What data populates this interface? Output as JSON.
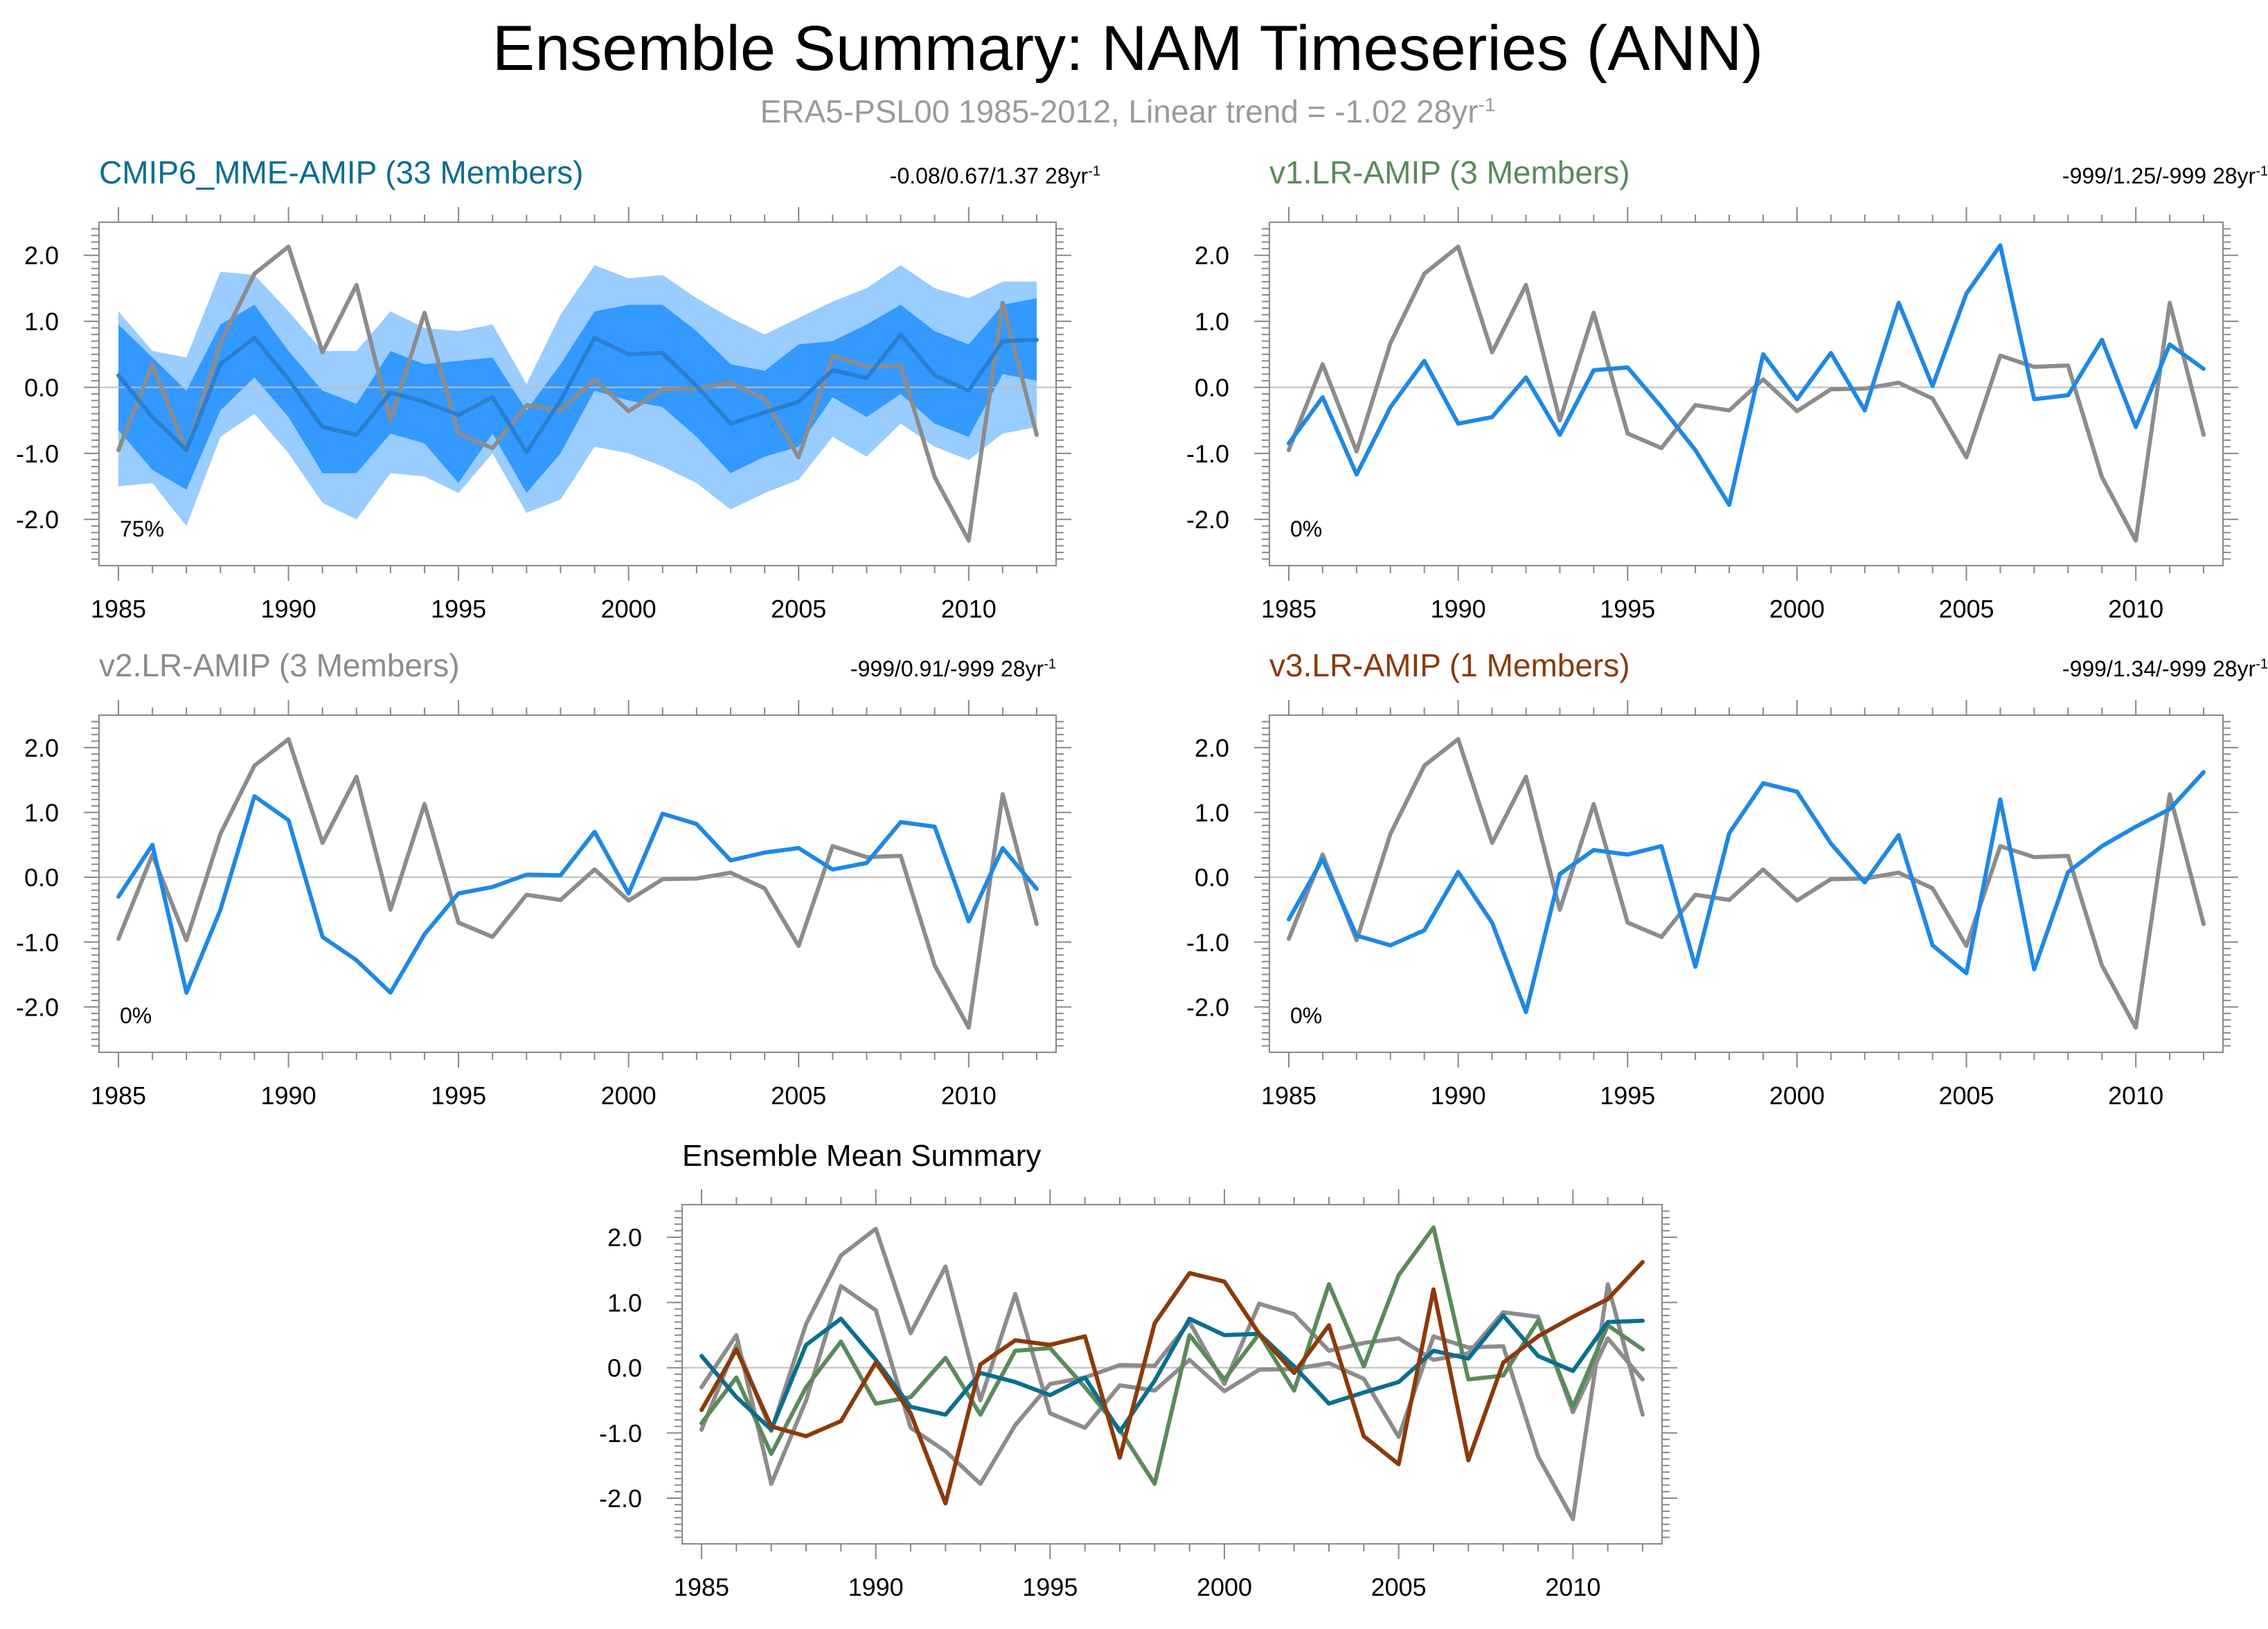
{
  "title": "Ensemble Summary: NAM Timeseries (ANN)",
  "subtitle": {
    "text": "ERA5-PSL00 1985-2012, Linear trend = -1.02 28yr",
    "superscript": "-1"
  },
  "colors": {
    "obs": "#8c8c8c",
    "model": "#1e88e5",
    "band_outer": "#99ccff",
    "band_inner": "#3399ff",
    "mme": "#0b6e8f",
    "v1": "#5a8a5a",
    "v2": "#8c8c8c",
    "v3": "#8b3a0a"
  },
  "chart_data": [
    {
      "id": "cmip6",
      "type": "line",
      "title": "CMIP6_MME-AMIP (33 Members)",
      "title_color": "#0b6e8f",
      "stats": "-0.08/0.67/1.37 28yr",
      "stats_sup": "-1",
      "percent_label": "75%",
      "x": [
        1985,
        1986,
        1987,
        1988,
        1989,
        1990,
        1991,
        1992,
        1993,
        1994,
        1995,
        1996,
        1997,
        1998,
        1999,
        2000,
        2001,
        2002,
        2003,
        2004,
        2005,
        2006,
        2007,
        2008,
        2009,
        2010,
        2011,
        2012
      ],
      "xlim": [
        1985,
        2012
      ],
      "ylim": [
        -2.7,
        2.5
      ],
      "xticks": [
        "1985",
        "1990",
        "1995",
        "2000",
        "2005",
        "2010"
      ],
      "yticks": [
        "2.0",
        "1.0",
        "0.0",
        "-1.0",
        "-2.0"
      ],
      "bands": [
        {
          "name": "outer",
          "lower": [
            -1.5,
            -1.45,
            -2.1,
            -0.75,
            -0.4,
            -1.0,
            -1.75,
            -2.0,
            -1.3,
            -1.35,
            -1.6,
            -1.0,
            -1.9,
            -1.7,
            -0.9,
            -1.0,
            -1.2,
            -1.45,
            -1.85,
            -1.6,
            -1.4,
            -0.75,
            -1.05,
            -0.55,
            -0.9,
            -1.1,
            -0.7,
            -0.6
          ],
          "upper": [
            1.15,
            0.55,
            0.45,
            1.75,
            1.7,
            1.15,
            0.55,
            0.55,
            1.15,
            0.9,
            0.85,
            0.95,
            0.05,
            1.1,
            1.85,
            1.65,
            1.7,
            1.35,
            1.05,
            0.8,
            1.05,
            1.3,
            1.5,
            1.85,
            1.5,
            1.35,
            1.6,
            1.6
          ]
        },
        {
          "name": "inner",
          "lower": [
            -0.65,
            -1.25,
            -1.55,
            -0.35,
            0.15,
            -0.45,
            -1.3,
            -1.3,
            -0.7,
            -0.85,
            -1.45,
            -0.7,
            -1.6,
            -1.0,
            -0.05,
            -0.2,
            -0.3,
            -0.75,
            -1.3,
            -1.05,
            -0.9,
            -0.15,
            -0.45,
            -0.1,
            -0.55,
            -0.75,
            0.2,
            0.1
          ],
          "upper": [
            0.95,
            0.45,
            -0.05,
            0.95,
            1.25,
            0.55,
            -0.05,
            -0.25,
            0.55,
            0.35,
            0.4,
            0.45,
            -0.35,
            0.35,
            1.15,
            1.25,
            1.25,
            0.85,
            0.35,
            0.25,
            0.65,
            0.7,
            0.95,
            1.25,
            0.85,
            0.65,
            1.25,
            1.35
          ]
        }
      ],
      "series": [
        {
          "name": "ERA5-PSL00",
          "color": "#8c8c8c",
          "values": [
            -0.95,
            0.35,
            -0.97,
            0.67,
            1.72,
            2.13,
            0.53,
            1.55,
            -0.5,
            1.13,
            -0.7,
            -0.92,
            -0.27,
            -0.35,
            0.12,
            -0.36,
            -0.03,
            -0.02,
            0.07,
            -0.17,
            -1.06,
            0.48,
            0.31,
            0.33,
            -1.36,
            -2.32,
            1.28,
            -0.72
          ]
        },
        {
          "name": "CMIP6_MME-AMIP",
          "color": "#2a7fd0",
          "values": [
            0.18,
            -0.45,
            -0.95,
            0.35,
            0.75,
            0.12,
            -0.6,
            -0.72,
            -0.08,
            -0.22,
            -0.42,
            -0.15,
            -0.98,
            -0.2,
            0.75,
            0.5,
            0.52,
            0.02,
            -0.55,
            -0.38,
            -0.22,
            0.26,
            0.14,
            0.8,
            0.18,
            -0.05,
            0.7,
            0.72
          ]
        }
      ]
    },
    {
      "id": "v1",
      "type": "line",
      "title": "v1.LR-AMIP (3 Members)",
      "title_color": "#5a8a5a",
      "stats": "-999/1.25/-999 28yr",
      "stats_sup": "-1",
      "percent_label": "0%",
      "x": [
        1985,
        1986,
        1987,
        1988,
        1989,
        1990,
        1991,
        1992,
        1993,
        1994,
        1995,
        1996,
        1997,
        1998,
        1999,
        2000,
        2001,
        2002,
        2003,
        2004,
        2005,
        2006,
        2007,
        2008,
        2009,
        2010,
        2011,
        2012
      ],
      "xlim": [
        1985,
        2012
      ],
      "ylim": [
        -2.7,
        2.5
      ],
      "xticks": [
        "1985",
        "1990",
        "1995",
        "2000",
        "2005",
        "2010"
      ],
      "yticks": [
        "2.0",
        "1.0",
        "0.0",
        "-1.0",
        "-2.0"
      ],
      "series": [
        {
          "name": "ERA5-PSL00",
          "color": "#8c8c8c",
          "values": [
            -0.95,
            0.35,
            -0.97,
            0.67,
            1.72,
            2.13,
            0.53,
            1.55,
            -0.5,
            1.13,
            -0.7,
            -0.92,
            -0.27,
            -0.35,
            0.12,
            -0.36,
            -0.03,
            -0.02,
            0.07,
            -0.17,
            -1.06,
            0.48,
            0.31,
            0.33,
            -1.36,
            -2.32,
            1.28,
            -0.72
          ]
        },
        {
          "name": "v1.LR-AMIP",
          "color": "#1e88e5",
          "values": [
            -0.85,
            -0.15,
            -1.32,
            -0.3,
            0.4,
            -0.55,
            -0.45,
            0.15,
            -0.72,
            0.26,
            0.3,
            -0.3,
            -0.95,
            -1.78,
            0.5,
            -0.18,
            0.52,
            -0.35,
            1.28,
            0.02,
            1.42,
            2.15,
            -0.18,
            -0.12,
            0.72,
            -0.6,
            0.65,
            0.28
          ]
        }
      ]
    },
    {
      "id": "v2",
      "type": "line",
      "title": "v2.LR-AMIP (3 Members)",
      "title_color": "#8c8c8c",
      "stats": "-999/0.91/-999 28yr",
      "stats_sup": "-1",
      "percent_label": "0%",
      "x": [
        1985,
        1986,
        1987,
        1988,
        1989,
        1990,
        1991,
        1992,
        1993,
        1994,
        1995,
        1996,
        1997,
        1998,
        1999,
        2000,
        2001,
        2002,
        2003,
        2004,
        2005,
        2006,
        2007,
        2008,
        2009,
        2010,
        2011,
        2012
      ],
      "xlim": [
        1985,
        2012
      ],
      "ylim": [
        -2.7,
        2.5
      ],
      "xticks": [
        "1985",
        "1990",
        "1995",
        "2000",
        "2005",
        "2010"
      ],
      "yticks": [
        "2.0",
        "1.0",
        "0.0",
        "-1.0",
        "-2.0"
      ],
      "series": [
        {
          "name": "ERA5-PSL00",
          "color": "#8c8c8c",
          "values": [
            -0.95,
            0.35,
            -0.97,
            0.67,
            1.72,
            2.13,
            0.53,
            1.55,
            -0.5,
            1.13,
            -0.7,
            -0.92,
            -0.27,
            -0.35,
            0.12,
            -0.36,
            -0.03,
            -0.02,
            0.07,
            -0.17,
            -1.06,
            0.48,
            0.31,
            0.33,
            -1.36,
            -2.32,
            1.28,
            -0.72
          ]
        },
        {
          "name": "v2.LR-AMIP",
          "color": "#1e88e5",
          "values": [
            -0.3,
            0.5,
            -1.78,
            -0.5,
            1.25,
            0.88,
            -0.92,
            -1.28,
            -1.78,
            -0.88,
            -0.25,
            -0.15,
            0.04,
            0.03,
            0.7,
            -0.25,
            0.98,
            0.82,
            0.26,
            0.38,
            0.45,
            0.12,
            0.22,
            0.85,
            0.78,
            -0.68,
            0.45,
            -0.18
          ]
        }
      ]
    },
    {
      "id": "v3",
      "type": "line",
      "title": "v3.LR-AMIP (1 Members)",
      "title_color": "#8b3a0a",
      "stats": "-999/1.34/-999 28yr",
      "stats_sup": "-1",
      "percent_label": "0%",
      "x": [
        1985,
        1986,
        1987,
        1988,
        1989,
        1990,
        1991,
        1992,
        1993,
        1994,
        1995,
        1996,
        1997,
        1998,
        1999,
        2000,
        2001,
        2002,
        2003,
        2004,
        2005,
        2006,
        2007,
        2008,
        2009,
        2010,
        2011,
        2012
      ],
      "xlim": [
        1985,
        2012
      ],
      "ylim": [
        -2.7,
        2.5
      ],
      "xticks": [
        "1985",
        "1990",
        "1995",
        "2000",
        "2005",
        "2010"
      ],
      "yticks": [
        "2.0",
        "1.0",
        "0.0",
        "-1.0",
        "-2.0"
      ],
      "series": [
        {
          "name": "ERA5-PSL00",
          "color": "#8c8c8c",
          "values": [
            -0.95,
            0.35,
            -0.97,
            0.67,
            1.72,
            2.13,
            0.53,
            1.55,
            -0.5,
            1.13,
            -0.7,
            -0.92,
            -0.27,
            -0.35,
            0.12,
            -0.36,
            -0.03,
            -0.02,
            0.07,
            -0.17,
            -1.06,
            0.48,
            0.31,
            0.33,
            -1.36,
            -2.32,
            1.28,
            -0.72
          ]
        },
        {
          "name": "v3.LR-AMIP",
          "color": "#1e88e5",
          "values": [
            -0.65,
            0.28,
            -0.9,
            -1.05,
            -0.82,
            0.08,
            -0.7,
            -2.08,
            0.05,
            0.42,
            0.35,
            0.48,
            -1.38,
            0.68,
            1.45,
            1.32,
            0.52,
            -0.08,
            0.65,
            -1.05,
            -1.48,
            1.2,
            -1.42,
            0.08,
            0.48,
            0.78,
            1.05,
            1.62
          ]
        }
      ]
    },
    {
      "id": "mean",
      "type": "line",
      "title": "Ensemble Mean Summary",
      "title_color": "#000000",
      "x": [
        1985,
        1986,
        1987,
        1988,
        1989,
        1990,
        1991,
        1992,
        1993,
        1994,
        1995,
        1996,
        1997,
        1998,
        1999,
        2000,
        2001,
        2002,
        2003,
        2004,
        2005,
        2006,
        2007,
        2008,
        2009,
        2010,
        2011,
        2012
      ],
      "xlim": [
        1985,
        2012
      ],
      "ylim": [
        -2.7,
        2.5
      ],
      "xticks": [
        "1985",
        "1990",
        "1995",
        "2000",
        "2005",
        "2010"
      ],
      "yticks": [
        "2.0",
        "1.0",
        "0.0",
        "-1.0",
        "-2.0"
      ],
      "series": [
        {
          "name": "ERA5-PSL00",
          "color": "#8c8c8c",
          "values": [
            -0.95,
            0.35,
            -0.97,
            0.67,
            1.72,
            2.13,
            0.53,
            1.55,
            -0.5,
            1.13,
            -0.7,
            -0.92,
            -0.27,
            -0.35,
            0.12,
            -0.36,
            -0.03,
            -0.02,
            0.07,
            -0.17,
            -1.06,
            0.48,
            0.31,
            0.33,
            -1.36,
            -2.32,
            1.28,
            -0.72
          ]
        },
        {
          "name": "v2.LR-AMIP",
          "color": "#8c8c8c",
          "values": [
            -0.3,
            0.5,
            -1.78,
            -0.5,
            1.25,
            0.88,
            -0.92,
            -1.28,
            -1.78,
            -0.88,
            -0.25,
            -0.15,
            0.04,
            0.03,
            0.7,
            -0.25,
            0.98,
            0.82,
            0.26,
            0.38,
            0.45,
            0.12,
            0.22,
            0.85,
            0.78,
            -0.68,
            0.45,
            -0.18
          ]
        },
        {
          "name": "v1.LR-AMIP",
          "color": "#5a8a5a",
          "values": [
            -0.85,
            -0.15,
            -1.32,
            -0.3,
            0.4,
            -0.55,
            -0.45,
            0.15,
            -0.72,
            0.26,
            0.3,
            -0.3,
            -0.95,
            -1.78,
            0.5,
            -0.18,
            0.52,
            -0.35,
            1.28,
            0.02,
            1.42,
            2.15,
            -0.18,
            -0.12,
            0.72,
            -0.6,
            0.65,
            0.28
          ]
        },
        {
          "name": "CMIP6_MME-AMIP",
          "color": "#0b6e8f",
          "values": [
            0.18,
            -0.45,
            -0.95,
            0.35,
            0.75,
            0.12,
            -0.6,
            -0.72,
            -0.08,
            -0.22,
            -0.42,
            -0.15,
            -0.98,
            -0.2,
            0.75,
            0.5,
            0.52,
            0.02,
            -0.55,
            -0.38,
            -0.22,
            0.26,
            0.14,
            0.8,
            0.18,
            -0.05,
            0.7,
            0.72
          ]
        },
        {
          "name": "v3.LR-AMIP",
          "color": "#8b3a0a",
          "values": [
            -0.65,
            0.28,
            -0.9,
            -1.05,
            -0.82,
            0.08,
            -0.7,
            -2.08,
            0.05,
            0.42,
            0.35,
            0.48,
            -1.38,
            0.68,
            1.45,
            1.32,
            0.52,
            -0.08,
            0.65,
            -1.05,
            -1.48,
            1.2,
            -1.42,
            0.08,
            0.48,
            0.78,
            1.05,
            1.62
          ]
        }
      ]
    }
  ]
}
